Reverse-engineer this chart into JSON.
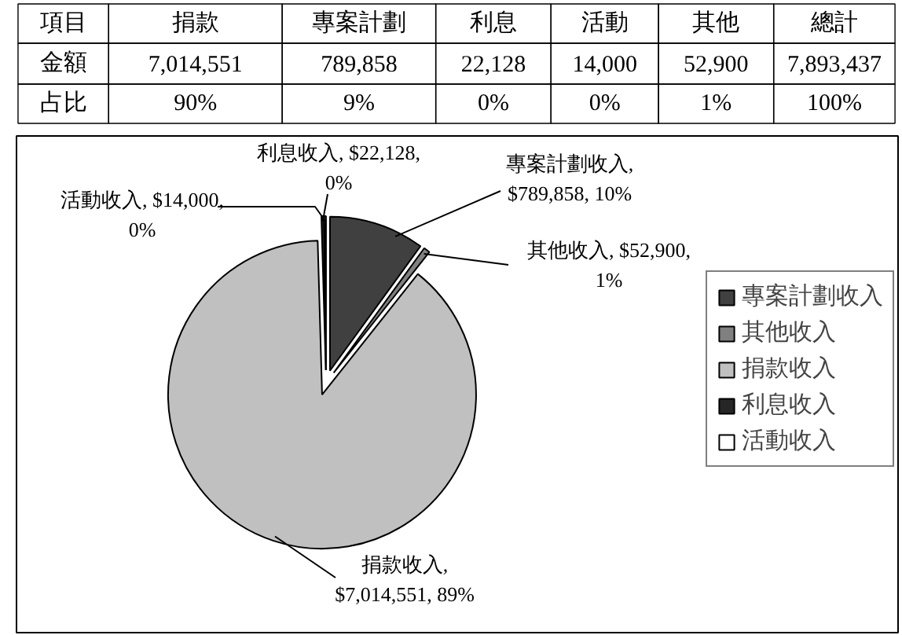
{
  "chart_data": [
    {
      "type": "other",
      "annotations": [
        "項目",
        "捐款",
        "專案計劃",
        "利息",
        "活動",
        "其他",
        "總計",
        "金額",
        "7,014,551",
        "789,858",
        "22,128",
        "14,000",
        "52,900",
        "7,893,437",
        "占比",
        "90%",
        "9%",
        "0%",
        "0%",
        "1%",
        "100%"
      ]
    },
    {
      "type": "pie",
      "categories": [
        "專案計劃收入",
        "其他收入",
        "捐款收入",
        "利息收入",
        "活動收入"
      ],
      "values": [
        789858,
        52900,
        7014551,
        22128,
        14000
      ],
      "colors": [
        "#404040",
        "#808080",
        "#c0c0c0",
        "#262626",
        "#ffffff"
      ],
      "value_labels": [
        "專案計劃收入, $789,858, 10%",
        "其他收入, $52,900, 1%",
        "捐款收入, $7,014,551, 89%",
        "利息收入, $22,128, 0%",
        "活動收入, $14,000, 0%"
      ],
      "legend": "right"
    }
  ]
}
